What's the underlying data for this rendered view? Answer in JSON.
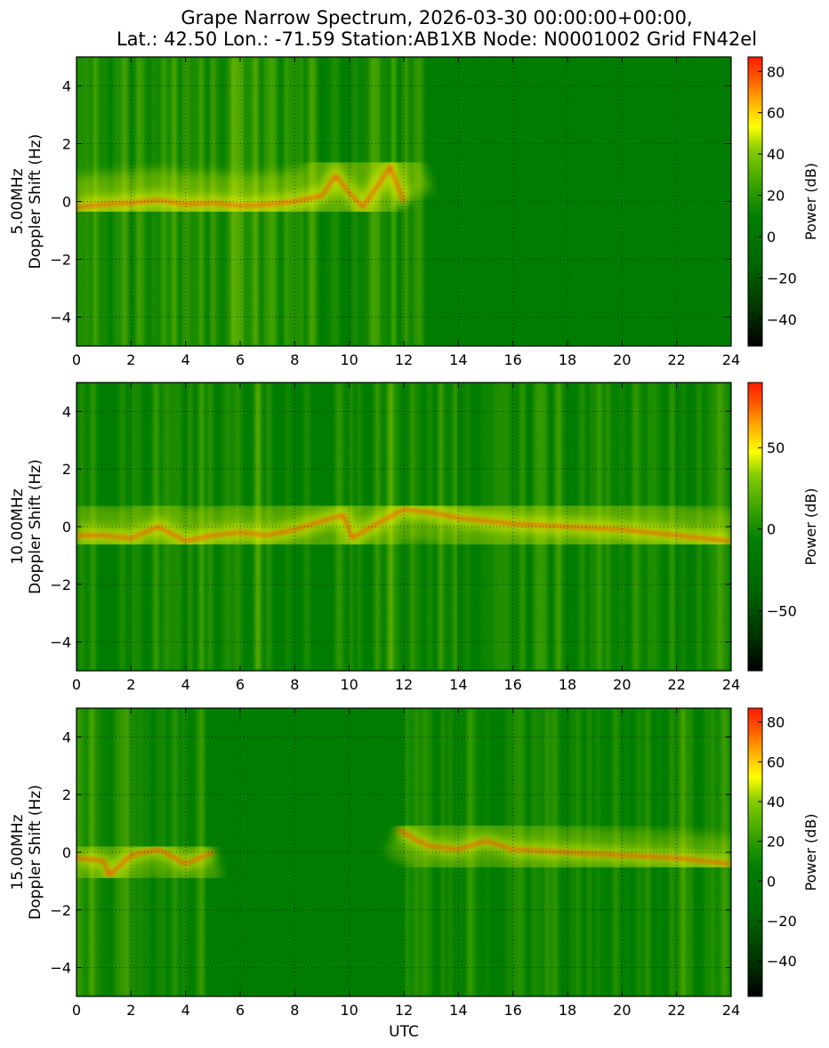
{
  "figure": {
    "title_line1": "Grape Narrow Spectrum, 2026-03-30 00:00:00+00:00,",
    "title_line2": "Lat.: 42.50 Lon.: -71.59 Station:AB1XB Node: N0001002 Grid FN42el",
    "xlabel": "UTC",
    "colors": {
      "background": "#007a00",
      "colormap": [
        "#000000",
        "#003300",
        "#006600",
        "#008000",
        "#33a000",
        "#88cc00",
        "#ffff00",
        "#ffaa00",
        "#ff5500",
        "#ff1a00"
      ]
    }
  },
  "chart_data": [
    {
      "type": "heatmap",
      "band": "5.00MHz",
      "ylabel_line1": "5.00MHz",
      "ylabel_line2": "Doppler Shift (Hz)",
      "xlim": [
        0,
        24
      ],
      "ylim": [
        -5,
        5
      ],
      "x_ticks": [
        0,
        2,
        4,
        6,
        8,
        10,
        12,
        14,
        16,
        18,
        20,
        22,
        24
      ],
      "y_ticks": [
        -4,
        -2,
        0,
        2,
        4
      ],
      "grid": true,
      "colorbar": {
        "label": "Power (dB)",
        "range": [
          -53,
          87
        ],
        "ticks": [
          -40,
          -20,
          0,
          20,
          40,
          60,
          80
        ]
      },
      "trace": {
        "x": [
          0,
          1,
          2,
          3,
          4,
          5,
          6,
          7,
          8,
          9,
          9.5,
          10,
          10.5,
          11,
          11.5,
          12
        ],
        "y": [
          -0.2,
          -0.1,
          -0.05,
          0.05,
          -0.1,
          -0.05,
          -0.15,
          -0.1,
          0.0,
          0.2,
          0.9,
          0.3,
          -0.2,
          0.5,
          1.2,
          0.0
        ]
      },
      "activity_until_utc": 13
    },
    {
      "type": "heatmap",
      "band": "10.00MHz",
      "ylabel_line1": "10.00MHz",
      "ylabel_line2": "Doppler Shift (Hz)",
      "xlim": [
        0,
        24
      ],
      "ylim": [
        -5,
        5
      ],
      "x_ticks": [
        0,
        2,
        4,
        6,
        8,
        10,
        12,
        14,
        16,
        18,
        20,
        22,
        24
      ],
      "y_ticks": [
        -4,
        -2,
        0,
        2,
        4
      ],
      "grid": true,
      "colorbar": {
        "label": "Power (dB)",
        "range": [
          -87,
          90
        ],
        "ticks": [
          -50,
          0,
          50
        ]
      },
      "trace": {
        "x": [
          0,
          1,
          2,
          3,
          4,
          5,
          6,
          7,
          8,
          9,
          9.8,
          10.1,
          11,
          12,
          13,
          14,
          15,
          16,
          18,
          20,
          22,
          24
        ],
        "y": [
          -0.3,
          -0.3,
          -0.4,
          0.0,
          -0.5,
          -0.3,
          -0.2,
          -0.3,
          -0.1,
          0.2,
          0.4,
          -0.4,
          0.1,
          0.6,
          0.5,
          0.3,
          0.2,
          0.1,
          0.0,
          -0.1,
          -0.3,
          -0.5
        ]
      },
      "activity_until_utc": 24
    },
    {
      "type": "heatmap",
      "band": "15.00MHz",
      "ylabel_line1": "15.00MHz",
      "ylabel_line2": "Doppler Shift (Hz)",
      "xlim": [
        0,
        24
      ],
      "ylim": [
        -5,
        5
      ],
      "x_ticks": [
        0,
        2,
        4,
        6,
        8,
        10,
        12,
        14,
        16,
        18,
        20,
        22,
        24
      ],
      "y_ticks": [
        -4,
        -2,
        0,
        2,
        4
      ],
      "grid": true,
      "colorbar": {
        "label": "Power (dB)",
        "range": [
          -58,
          87
        ],
        "ticks": [
          -40,
          -20,
          0,
          20,
          40,
          60,
          80
        ]
      },
      "trace": {
        "x": [
          0,
          1,
          1.2,
          2,
          3,
          4,
          5,
          11.8,
          12.5,
          13,
          14,
          15,
          16,
          18,
          20,
          22,
          24
        ],
        "y": [
          -0.2,
          -0.3,
          -0.8,
          -0.1,
          0.1,
          -0.4,
          0.0,
          0.8,
          0.4,
          0.2,
          0.1,
          0.4,
          0.1,
          0.0,
          -0.1,
          -0.2,
          -0.4
        ]
      },
      "activity_until_utc": 24,
      "gap_utc": [
        5,
        11.8
      ]
    }
  ]
}
